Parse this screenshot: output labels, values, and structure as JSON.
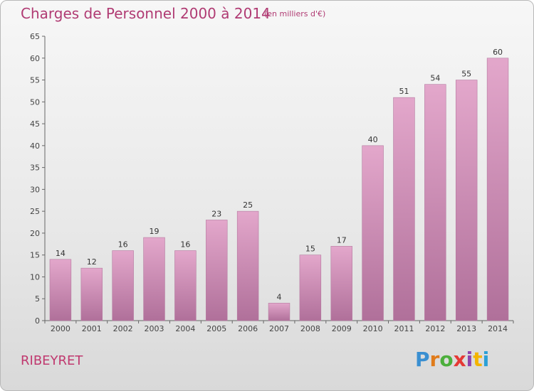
{
  "header": {
    "title": "Charges de Personnel 2000 à 2014",
    "subtitle": "(en milliers d'€)"
  },
  "footer": {
    "commune": "RIBEYRET",
    "logo": "Proxiti",
    "logo_colors": [
      "#3a8fd1",
      "#e07b1a",
      "#4caf3c",
      "#e53935",
      "#8e44ad",
      "#f4b400",
      "#2aa0d6"
    ]
  },
  "colors": {
    "bar": "#d98fb8",
    "accent": "#b03b73"
  },
  "chart_data": {
    "type": "bar",
    "categories": [
      "2000",
      "2001",
      "2002",
      "2003",
      "2004",
      "2005",
      "2006",
      "2007",
      "2008",
      "2009",
      "2010",
      "2011",
      "2012",
      "2013",
      "2014"
    ],
    "values": [
      14,
      12,
      16,
      19,
      16,
      23,
      25,
      4,
      15,
      17,
      40,
      51,
      54,
      55,
      60
    ],
    "title": "Charges de Personnel 2000 à 2014",
    "ylim": [
      0,
      65
    ],
    "yticks": [
      0,
      5,
      10,
      15,
      20,
      25,
      30,
      35,
      40,
      45,
      50,
      55,
      60,
      65
    ],
    "grid": false,
    "legend": "none"
  }
}
